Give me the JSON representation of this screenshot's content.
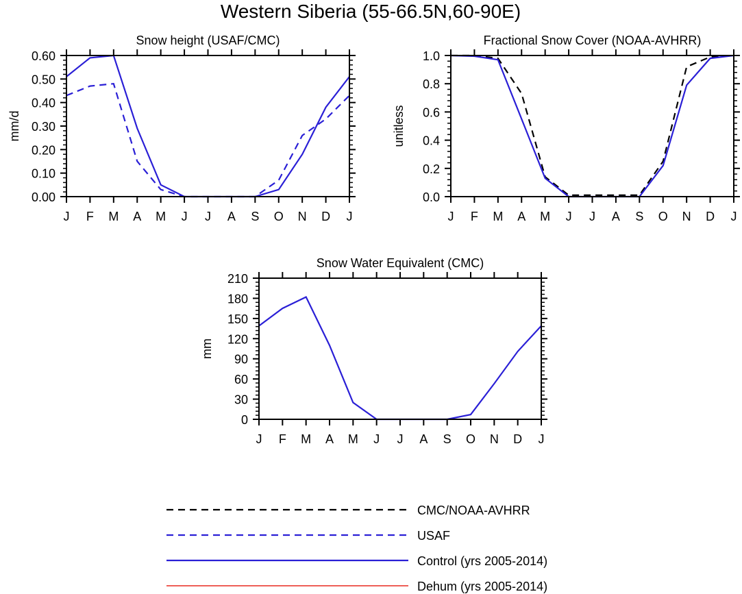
{
  "figure_title": "Western Siberia (55-66.5N,60-90E)",
  "colors": {
    "control": "#2a1fd6",
    "usaf": "#2a1fd6",
    "obs": "#000000",
    "dehum": "#e8281e",
    "axis": "#000000"
  },
  "chart_data": [
    {
      "id": "snow-height",
      "type": "line",
      "title": "Snow height (USAF/CMC)",
      "xlabel": "",
      "ylabel": "mm/d",
      "categories": [
        "J",
        "F",
        "M",
        "A",
        "M",
        "J",
        "J",
        "A",
        "S",
        "O",
        "N",
        "D",
        "J"
      ],
      "ylim": [
        0,
        0.6
      ],
      "yticks": [
        0,
        0.1,
        0.2,
        0.3,
        0.4,
        0.5,
        0.6
      ],
      "ytick_labels": [
        "0.00",
        "0.10",
        "0.20",
        "0.30",
        "0.40",
        "0.50",
        "0.60"
      ],
      "series": [
        {
          "name": "USAF",
          "style": "usaf",
          "values": [
            0.43,
            0.47,
            0.48,
            0.15,
            0.03,
            0,
            0,
            0,
            0,
            0.07,
            0.26,
            0.33,
            0.43
          ]
        },
        {
          "name": "Control (yrs 2005-2014)",
          "style": "control",
          "values": [
            0.51,
            0.59,
            0.6,
            0.29,
            0.05,
            0,
            0,
            0,
            0,
            0.03,
            0.18,
            0.38,
            0.51
          ]
        },
        {
          "name": "Dehum (yrs 2005-2014)",
          "style": "dehum",
          "values": [
            0,
            0,
            0,
            0,
            0,
            0,
            0,
            0,
            0,
            0,
            0,
            0,
            0
          ]
        }
      ]
    },
    {
      "id": "snow-cover",
      "type": "line",
      "title": "Fractional Snow Cover (NOAA-AVHRR)",
      "xlabel": "",
      "ylabel": "unitless",
      "categories": [
        "J",
        "F",
        "M",
        "A",
        "M",
        "J",
        "J",
        "A",
        "S",
        "O",
        "N",
        "D",
        "J"
      ],
      "ylim": [
        0,
        1.0
      ],
      "yticks": [
        0,
        0.2,
        0.4,
        0.6,
        0.8,
        1.0
      ],
      "ytick_labels": [
        "0.0",
        "0.2",
        "0.4",
        "0.6",
        "0.8",
        "1.0"
      ],
      "series": [
        {
          "name": "CMC/NOAA-AVHRR",
          "style": "obs",
          "values": [
            1.0,
            1.0,
            0.98,
            0.73,
            0.14,
            0.01,
            0.01,
            0.01,
            0.01,
            0.25,
            0.92,
            0.99,
            1.0
          ]
        },
        {
          "name": "Control (yrs 2005-2014)",
          "style": "control",
          "values": [
            1.0,
            0.995,
            0.97,
            0.55,
            0.13,
            0,
            0,
            0,
            0,
            0.22,
            0.79,
            0.98,
            1.0
          ]
        },
        {
          "name": "Dehum (yrs 2005-2014)",
          "style": "dehum",
          "values": [
            0,
            0,
            0,
            0,
            0,
            0,
            0,
            0,
            0,
            0,
            0,
            0,
            0
          ]
        }
      ]
    },
    {
      "id": "swe",
      "type": "line",
      "title": "Snow Water Equivalent (CMC)",
      "xlabel": "",
      "ylabel": "mm",
      "categories": [
        "J",
        "F",
        "M",
        "A",
        "M",
        "J",
        "J",
        "A",
        "S",
        "O",
        "N",
        "D",
        "J"
      ],
      "ylim": [
        0,
        210
      ],
      "yticks": [
        0,
        30,
        60,
        90,
        120,
        150,
        180,
        210
      ],
      "ytick_labels": [
        "0",
        "30",
        "60",
        "90",
        "120",
        "150",
        "180",
        "210"
      ],
      "series": [
        {
          "name": "Control (yrs 2005-2014)",
          "style": "control",
          "values": [
            139,
            165,
            182,
            110,
            25,
            0,
            0,
            0,
            0,
            7,
            53,
            101,
            139
          ]
        },
        {
          "name": "Dehum (yrs 2005-2014)",
          "style": "dehum",
          "values": [
            0,
            0,
            0,
            0,
            0,
            0,
            0,
            0,
            0,
            0,
            0,
            0,
            0
          ]
        }
      ]
    }
  ],
  "legend": [
    {
      "label": "CMC/NOAA-AVHRR",
      "style": "obs"
    },
    {
      "label": "USAF",
      "style": "usaf"
    },
    {
      "label": "Control (yrs 2005-2014)",
      "style": "control"
    },
    {
      "label": "Dehum (yrs 2005-2014)",
      "style": "dehum"
    }
  ]
}
